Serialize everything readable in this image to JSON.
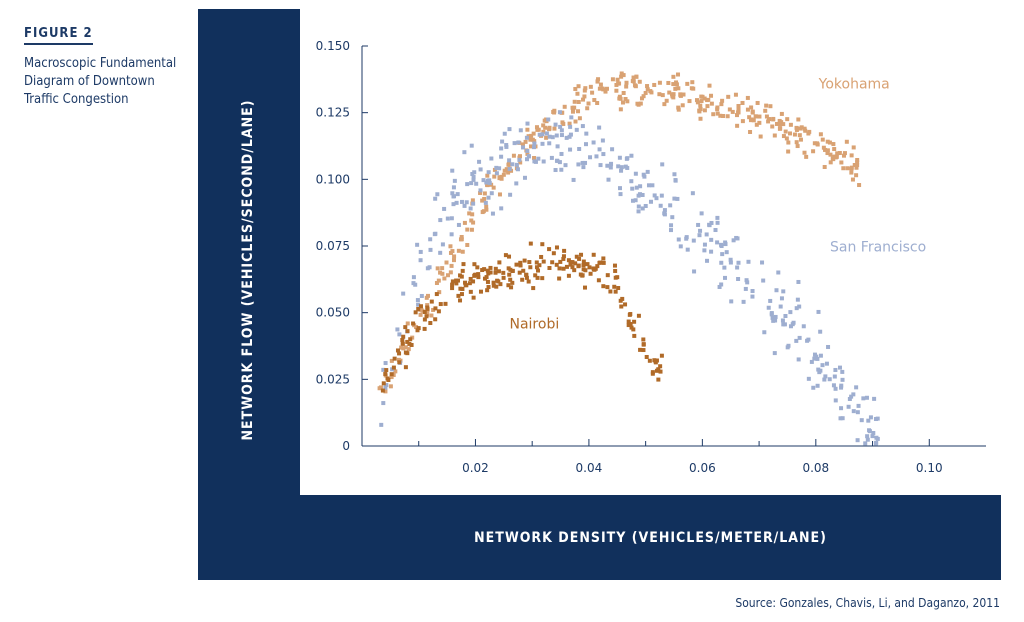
{
  "figure": {
    "label": "FIGURE 2",
    "title": "Macroscopic Fundamental Diagram of Downtown Traffic Congestion",
    "source": "Source: Gonzales, Chavis, Li, and Daganzo, 2011"
  },
  "colors": {
    "frame": "#11305c",
    "text": "#1d3a66",
    "yokohama": "#d9a273",
    "san_francisco": "#9eaed0",
    "nairobi": "#b06a28"
  },
  "chart_data": {
    "type": "scatter",
    "xlabel": "NETWORK DENSITY (VEHICLES/METER/LANE)",
    "ylabel": "NETWORK FLOW (VEHICLES/SECOND/LANE)",
    "xlim": [
      0,
      0.11
    ],
    "ylim": [
      0,
      0.15
    ],
    "xticks": [
      "0.02",
      "0.04",
      "0.06",
      "0.08",
      "0.10"
    ],
    "yticks": [
      "0",
      "0.025",
      "0.050",
      "0.075",
      "0.100",
      "0.125",
      "0.150"
    ],
    "grid": false,
    "series": [
      {
        "name": "Yokohama",
        "color": "#d9a273",
        "curve_x": [
          0.003,
          0.008,
          0.012,
          0.016,
          0.02,
          0.024,
          0.028,
          0.032,
          0.036,
          0.04,
          0.044,
          0.048,
          0.052,
          0.056,
          0.06,
          0.064,
          0.068,
          0.072,
          0.076,
          0.08,
          0.084,
          0.088
        ],
        "curve_y": [
          0.018,
          0.038,
          0.055,
          0.072,
          0.088,
          0.1,
          0.111,
          0.12,
          0.127,
          0.132,
          0.134,
          0.135,
          0.135,
          0.133,
          0.13,
          0.127,
          0.124,
          0.121,
          0.118,
          0.113,
          0.108,
          0.102
        ],
        "spread": 0.007,
        "points": 380
      },
      {
        "name": "San Francisco",
        "color": "#9eaed0",
        "curve_x": [
          0.003,
          0.006,
          0.009,
          0.012,
          0.015,
          0.018,
          0.02,
          0.024,
          0.028,
          0.032,
          0.036,
          0.04,
          0.044,
          0.048,
          0.052,
          0.056,
          0.06,
          0.064,
          0.068,
          0.072,
          0.076,
          0.08,
          0.084,
          0.088,
          0.091
        ],
        "curve_y": [
          0.02,
          0.038,
          0.058,
          0.075,
          0.088,
          0.095,
          0.098,
          0.105,
          0.11,
          0.112,
          0.112,
          0.108,
          0.103,
          0.097,
          0.092,
          0.086,
          0.079,
          0.071,
          0.064,
          0.055,
          0.045,
          0.034,
          0.022,
          0.01,
          0.002
        ],
        "spread": 0.014,
        "points": 360
      },
      {
        "name": "Nairobi",
        "color": "#b06a28",
        "curve_x": [
          0.003,
          0.006,
          0.009,
          0.012,
          0.015,
          0.018,
          0.022,
          0.026,
          0.03,
          0.034,
          0.038,
          0.042,
          0.045,
          0.047,
          0.049,
          0.051,
          0.053
        ],
        "curve_y": [
          0.018,
          0.032,
          0.043,
          0.052,
          0.058,
          0.062,
          0.065,
          0.066,
          0.067,
          0.068,
          0.068,
          0.066,
          0.06,
          0.05,
          0.04,
          0.032,
          0.028
        ],
        "spread": 0.007,
        "points": 230
      }
    ]
  }
}
